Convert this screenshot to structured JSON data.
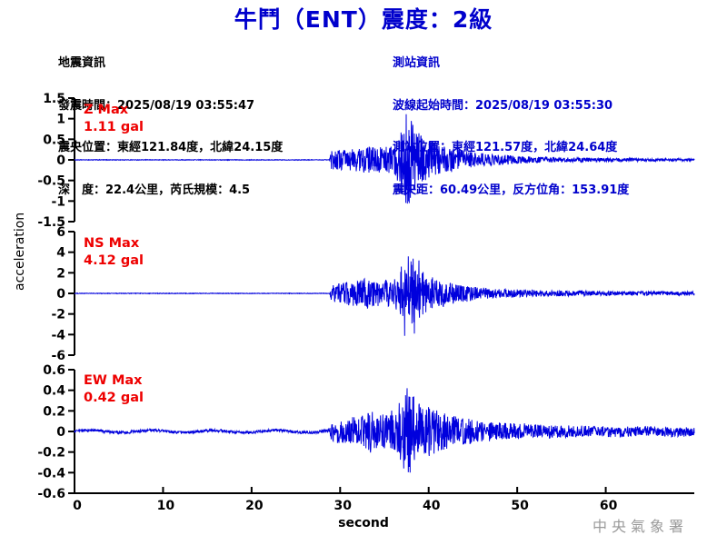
{
  "title": "牛鬥（ENT）震度：2級",
  "event_info": {
    "heading": "地震資訊",
    "lines": [
      "發震時間：2025/08/19 03:55:47",
      "震央位置：東經121.84度，北緯24.15度",
      "深　度：22.4公里，芮氏規模：4.5"
    ]
  },
  "station_info": {
    "heading": "測站資訊",
    "lines": [
      "波線起始時間：2025/08/19 03:55:30",
      "測站位置：東經121.57度，北緯24.64度",
      "震央距：60.49公里，反方位角：153.91度"
    ]
  },
  "watermark": "中央氣象署",
  "colors": {
    "title_blue": "#0000cc",
    "info_blue": "#0000cc",
    "trace_blue": "#0000dd",
    "max_red": "#ee0000",
    "axis_black": "#000000",
    "watermark_gray": "#9a9a9a"
  },
  "chart_data": {
    "type": "line",
    "xlabel": "second",
    "ylabel": "acceleration",
    "xlim": [
      0,
      70
    ],
    "xticks": [
      0,
      10,
      20,
      30,
      40,
      50,
      60
    ],
    "grid": false,
    "legend": "none",
    "trace_color": "#0000dd",
    "p_arrival_s": 29,
    "s_peak_s": 37.5,
    "traces": [
      {
        "name": "Z",
        "max_title": "Z Max",
        "max_value": "1.11 gal",
        "max_gal": 1.11,
        "ylim": [
          -1.5,
          1.5
        ],
        "yticks": [
          1.5,
          1,
          0.5,
          0,
          -0.5,
          -1,
          -1.5
        ],
        "envelope": [
          [
            0,
            0.008
          ],
          [
            28.8,
            0.008
          ],
          [
            29,
            0.22
          ],
          [
            30,
            0.27
          ],
          [
            31,
            0.25
          ],
          [
            32,
            0.3
          ],
          [
            33,
            0.33
          ],
          [
            34,
            0.3
          ],
          [
            35,
            0.32
          ],
          [
            36,
            0.36
          ],
          [
            36.6,
            0.55
          ],
          [
            37.1,
            0.95
          ],
          [
            37.6,
            1.11
          ],
          [
            38.1,
            0.95
          ],
          [
            38.6,
            0.75
          ],
          [
            39.2,
            0.6
          ],
          [
            40,
            0.5
          ],
          [
            41,
            0.4
          ],
          [
            42,
            0.33
          ],
          [
            43,
            0.28
          ],
          [
            44,
            0.23
          ],
          [
            45,
            0.2
          ],
          [
            46,
            0.17
          ],
          [
            48,
            0.13
          ],
          [
            50,
            0.1
          ],
          [
            52,
            0.08
          ],
          [
            55,
            0.06
          ],
          [
            58,
            0.05
          ],
          [
            62,
            0.04
          ],
          [
            66,
            0.035
          ],
          [
            70,
            0.03
          ]
        ],
        "spikes": [
          [
            37.45,
            1.11
          ],
          [
            37.8,
            -1.05
          ],
          [
            38.2,
            0.85
          ],
          [
            36.9,
            -0.8
          ]
        ],
        "wobble": 0
      },
      {
        "name": "NS",
        "max_title": "NS Max",
        "max_value": "4.12 gal",
        "max_gal": 4.12,
        "ylim": [
          -6,
          6
        ],
        "yticks": [
          6,
          4,
          2,
          0,
          -2,
          -4,
          -6
        ],
        "envelope": [
          [
            0,
            0.03
          ],
          [
            28.8,
            0.03
          ],
          [
            29,
            0.8
          ],
          [
            30,
            1.0
          ],
          [
            31,
            1.2
          ],
          [
            31.5,
            1.5
          ],
          [
            32,
            1.3
          ],
          [
            33,
            1.5
          ],
          [
            34,
            1.25
          ],
          [
            35,
            1.35
          ],
          [
            36,
            1.25
          ],
          [
            36.6,
            2.0
          ],
          [
            37,
            3.1
          ],
          [
            37.4,
            4.0
          ],
          [
            37.9,
            3.4
          ],
          [
            38.4,
            3.7
          ],
          [
            38.9,
            2.5
          ],
          [
            39.5,
            2.0
          ],
          [
            40,
            1.8
          ],
          [
            41,
            1.5
          ],
          [
            42,
            1.2
          ],
          [
            43,
            1.0
          ],
          [
            44,
            0.85
          ],
          [
            45,
            0.7
          ],
          [
            46,
            0.6
          ],
          [
            48,
            0.45
          ],
          [
            50,
            0.38
          ],
          [
            52,
            0.32
          ],
          [
            55,
            0.28
          ],
          [
            58,
            0.24
          ],
          [
            62,
            0.22
          ],
          [
            66,
            0.2
          ],
          [
            70,
            0.18
          ]
        ],
        "spikes": [
          [
            37.3,
            -4.12
          ],
          [
            37.7,
            3.6
          ],
          [
            38.4,
            -3.9
          ],
          [
            38.9,
            3.2
          ],
          [
            36.9,
            2.6
          ]
        ],
        "wobble": 0
      },
      {
        "name": "EW",
        "max_title": "EW Max",
        "max_value": "0.42 gal",
        "max_gal": 0.42,
        "ylim": [
          -0.6,
          0.6
        ],
        "yticks": [
          0.6,
          0.4,
          0.2,
          0,
          -0.2,
          -0.4,
          -0.6
        ],
        "envelope": [
          [
            0,
            0.012
          ],
          [
            5,
            0.016
          ],
          [
            10,
            0.012
          ],
          [
            15,
            0.015
          ],
          [
            20,
            0.012
          ],
          [
            25,
            0.014
          ],
          [
            28.8,
            0.016
          ],
          [
            29,
            0.1
          ],
          [
            30,
            0.12
          ],
          [
            31,
            0.13
          ],
          [
            32,
            0.16
          ],
          [
            33,
            0.18
          ],
          [
            33.5,
            0.21
          ],
          [
            34,
            0.16
          ],
          [
            35,
            0.18
          ],
          [
            36,
            0.21
          ],
          [
            36.5,
            0.26
          ],
          [
            37,
            0.35
          ],
          [
            37.5,
            0.42
          ],
          [
            38,
            0.38
          ],
          [
            38.5,
            0.31
          ],
          [
            39,
            0.28
          ],
          [
            40,
            0.25
          ],
          [
            41,
            0.2
          ],
          [
            42,
            0.17
          ],
          [
            43,
            0.15
          ],
          [
            44,
            0.13
          ],
          [
            45,
            0.12
          ],
          [
            46,
            0.1
          ],
          [
            48,
            0.09
          ],
          [
            50,
            0.08
          ],
          [
            52,
            0.07
          ],
          [
            55,
            0.06
          ],
          [
            58,
            0.055
          ],
          [
            62,
            0.05
          ],
          [
            66,
            0.047
          ],
          [
            70,
            0.045
          ]
        ],
        "spikes": [
          [
            37.55,
            0.42
          ],
          [
            37.9,
            -0.4
          ],
          [
            37.2,
            -0.36
          ],
          [
            38.3,
            0.34
          ]
        ],
        "wobble": 1
      }
    ]
  }
}
